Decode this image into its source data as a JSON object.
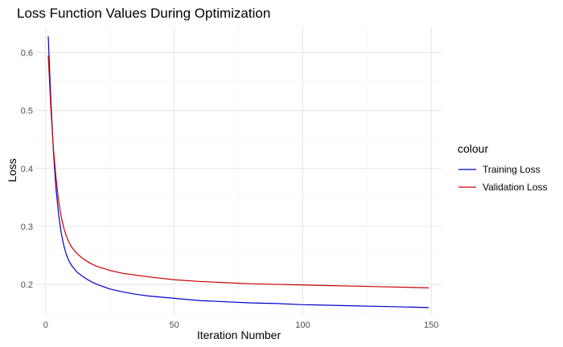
{
  "chart_data": {
    "type": "line",
    "title": "Loss Function Values During Optimization",
    "xlabel": "Iteration Number",
    "ylabel": "Loss",
    "xlim": [
      -4,
      154
    ],
    "ylim": [
      0.146,
      0.645
    ],
    "x_ticks": [
      0,
      50,
      100,
      150
    ],
    "y_ticks": [
      0.2,
      0.3,
      0.4,
      0.5,
      0.6
    ],
    "x_tick_labels": [
      "0",
      "50",
      "100",
      "150"
    ],
    "y_tick_labels": [
      "0.2",
      "0.3",
      "0.4",
      "0.5",
      "0.6"
    ],
    "grid": true,
    "legend": {
      "title": "colour",
      "position": "right"
    },
    "x": [
      1,
      2,
      3,
      4,
      5,
      6,
      7,
      8,
      9,
      10,
      12,
      14,
      16,
      18,
      20,
      25,
      30,
      35,
      40,
      50,
      60,
      70,
      80,
      90,
      100,
      110,
      120,
      130,
      140,
      149
    ],
    "series": [
      {
        "name": "Training Loss",
        "color": "#0000cc",
        "values": [
          0.628,
          0.52,
          0.43,
          0.366,
          0.322,
          0.29,
          0.268,
          0.252,
          0.241,
          0.233,
          0.222,
          0.215,
          0.209,
          0.204,
          0.2,
          0.192,
          0.187,
          0.183,
          0.18,
          0.176,
          0.172,
          0.17,
          0.168,
          0.167,
          0.165,
          0.164,
          0.163,
          0.162,
          0.161,
          0.16
        ]
      },
      {
        "name": "Validation Loss",
        "color": "#cc0000",
        "values": [
          0.595,
          0.505,
          0.435,
          0.385,
          0.345,
          0.318,
          0.298,
          0.284,
          0.273,
          0.265,
          0.254,
          0.246,
          0.24,
          0.235,
          0.231,
          0.224,
          0.219,
          0.216,
          0.213,
          0.208,
          0.205,
          0.203,
          0.201,
          0.2,
          0.199,
          0.198,
          0.197,
          0.196,
          0.195,
          0.194
        ]
      }
    ]
  }
}
